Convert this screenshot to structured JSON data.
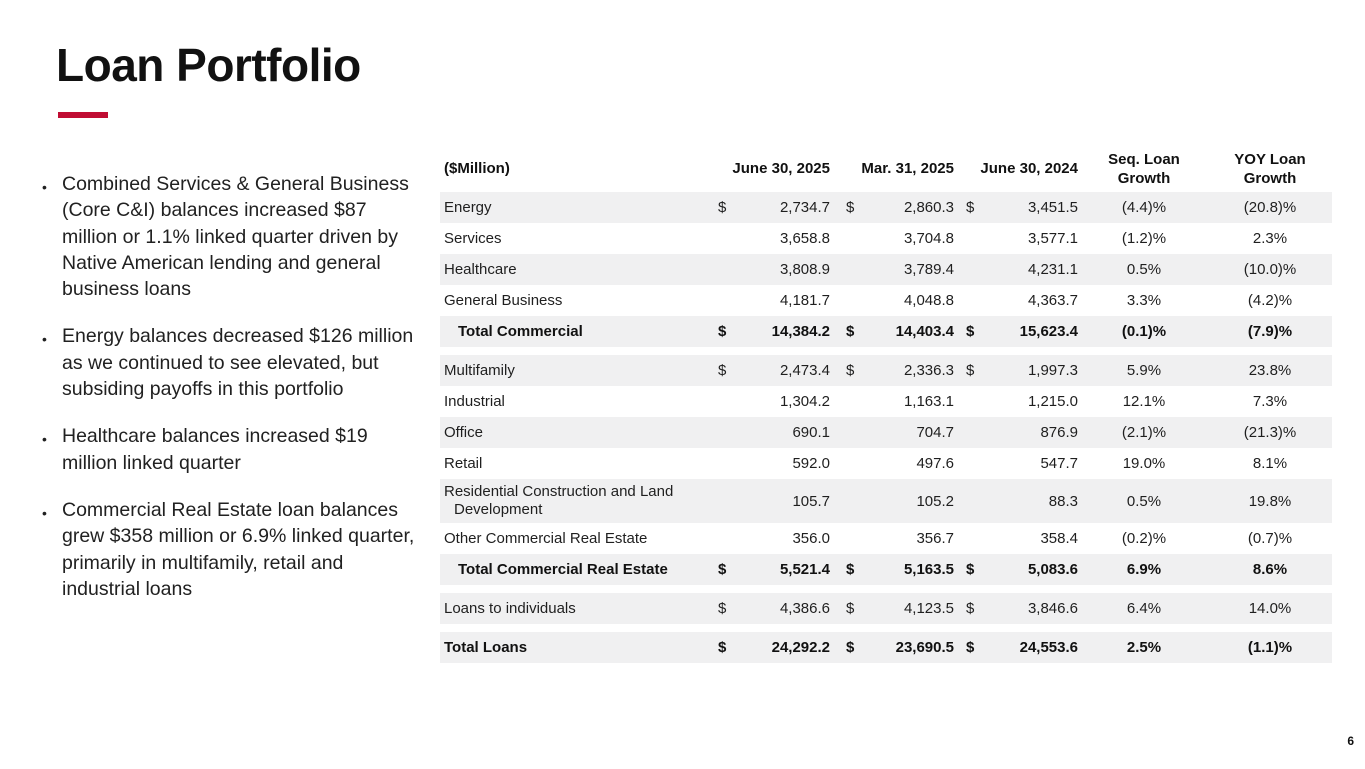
{
  "slide": {
    "title": "Loan Portfolio",
    "accent_color": "#C00D33",
    "page_number": "6"
  },
  "bullets": [
    "Combined Services & General Business (Core C&I) balances increased $87 million or 1.1% linked quarter driven by Native American lending and general business loans",
    "Energy balances decreased $126 million as we continued to see elevated, but subsiding payoffs in this portfolio",
    "Healthcare balances increased $19 million linked quarter",
    "Commercial Real Estate loan balances grew $358 million or 6.9% linked quarter, primarily in multifamily, retail and industrial loans"
  ],
  "table": {
    "headers": {
      "unit": "($Million)",
      "col1": "June 30, 2025",
      "col2": "Mar. 31, 2025",
      "col3": "June 30, 2024",
      "seq_line1": "Seq. Loan",
      "seq_line2": "Growth",
      "yoy_line1": "YOY Loan",
      "yoy_line2": "Growth"
    },
    "currency_symbol": "$",
    "rows": [
      {
        "label": "Energy",
        "dollar": true,
        "values": [
          "2,734.7",
          "2,860.3",
          "3,451.5"
        ],
        "seq": "(4.4)%",
        "yoy": "(20.8)%",
        "shade": true,
        "bold": false,
        "indent": false,
        "gap": false
      },
      {
        "label": "Services",
        "dollar": false,
        "values": [
          "3,658.8",
          "3,704.8",
          "3,577.1"
        ],
        "seq": "(1.2)%",
        "yoy": "2.3%",
        "shade": false,
        "bold": false,
        "indent": false,
        "gap": false
      },
      {
        "label": "Healthcare",
        "dollar": false,
        "values": [
          "3,808.9",
          "3,789.4",
          "4,231.1"
        ],
        "seq": "0.5%",
        "yoy": "(10.0)%",
        "shade": true,
        "bold": false,
        "indent": false,
        "gap": false
      },
      {
        "label": "General Business",
        "dollar": false,
        "values": [
          "4,181.7",
          "4,048.8",
          "4,363.7"
        ],
        "seq": "3.3%",
        "yoy": "(4.2)%",
        "shade": false,
        "bold": false,
        "indent": false,
        "gap": false
      },
      {
        "label": "Total Commercial",
        "dollar": true,
        "values": [
          "14,384.2",
          "14,403.4",
          "15,623.4"
        ],
        "seq": "(0.1)%",
        "yoy": "(7.9)%",
        "shade": true,
        "bold": true,
        "indent": true,
        "gap": false
      },
      {
        "label": "Multifamily",
        "dollar": true,
        "values": [
          "2,473.4",
          "2,336.3",
          "1,997.3"
        ],
        "seq": "5.9%",
        "yoy": "23.8%",
        "shade": true,
        "bold": false,
        "indent": false,
        "gap": true
      },
      {
        "label": "Industrial",
        "dollar": false,
        "values": [
          "1,304.2",
          "1,163.1",
          "1,215.0"
        ],
        "seq": "12.1%",
        "yoy": "7.3%",
        "shade": false,
        "bold": false,
        "indent": false,
        "gap": false
      },
      {
        "label": "Office",
        "dollar": false,
        "values": [
          "690.1",
          "704.7",
          "876.9"
        ],
        "seq": "(2.1)%",
        "yoy": "(21.3)%",
        "shade": true,
        "bold": false,
        "indent": false,
        "gap": false
      },
      {
        "label": "Retail",
        "dollar": false,
        "values": [
          "592.0",
          "497.6",
          "547.7"
        ],
        "seq": "19.0%",
        "yoy": "8.1%",
        "shade": false,
        "bold": false,
        "indent": false,
        "gap": false
      },
      {
        "label": "Residential Construction and Land Development",
        "dollar": false,
        "values": [
          "105.7",
          "105.2",
          "88.3"
        ],
        "seq": "0.5%",
        "yoy": "19.8%",
        "shade": true,
        "bold": false,
        "indent": false,
        "gap": false
      },
      {
        "label": "Other Commercial Real Estate",
        "dollar": false,
        "values": [
          "356.0",
          "356.7",
          "358.4"
        ],
        "seq": "(0.2)%",
        "yoy": "(0.7)%",
        "shade": false,
        "bold": false,
        "indent": false,
        "gap": false
      },
      {
        "label": "Total Commercial Real Estate",
        "dollar": true,
        "values": [
          "5,521.4",
          "5,163.5",
          "5,083.6"
        ],
        "seq": "6.9%",
        "yoy": "8.6%",
        "shade": true,
        "bold": true,
        "indent": true,
        "gap": false
      },
      {
        "label": "Loans to individuals",
        "dollar": true,
        "values": [
          "4,386.6",
          "4,123.5",
          "3,846.6"
        ],
        "seq": "6.4%",
        "yoy": "14.0%",
        "shade": true,
        "bold": false,
        "indent": false,
        "gap": true
      },
      {
        "label": "Total Loans",
        "dollar": true,
        "values": [
          "24,292.2",
          "23,690.5",
          "24,553.6"
        ],
        "seq": "2.5%",
        "yoy": "(1.1)%",
        "shade": true,
        "bold": true,
        "indent": false,
        "gap": true
      }
    ]
  }
}
